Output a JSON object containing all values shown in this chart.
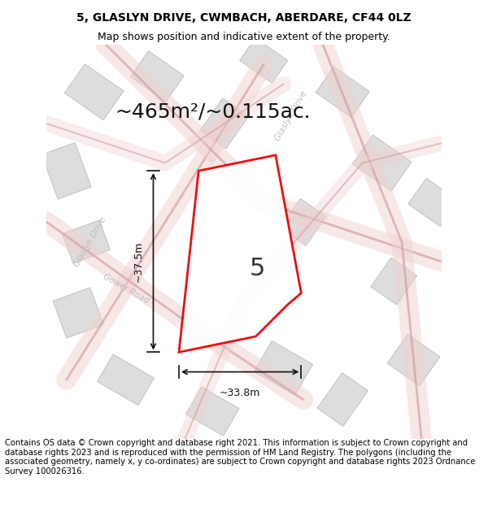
{
  "title_line1": "5, GLASLYN DRIVE, CWMBACH, ABERDARE, CF44 0LZ",
  "title_line2": "Map shows position and indicative extent of the property.",
  "area_text": "~465m²/~0.115ac.",
  "plot_number": "5",
  "dim_width": "~33.8m",
  "dim_height": "~37.5m",
  "footer_text": "Contains OS data © Crown copyright and database right 2021. This information is subject to Crown copyright and database rights 2023 and is reproduced with the permission of HM Land Registry. The polygons (including the associated geometry, namely x, y co-ordinates) are subject to Crown copyright and database rights 2023 Ordnance Survey 100026316.",
  "bg_color": "#f5f5f5",
  "map_bg": "#f8f5f5",
  "road_color": "#e8b8b8",
  "building_color": "#d8d8d8",
  "building_edge": "#cccccc",
  "plot_color": "#ff0000",
  "plot_fill": "#ffffff",
  "text_color": "#333333",
  "road_label_color": "#aaaaaa",
  "title_fontsize": 10,
  "subtitle_fontsize": 9,
  "area_fontsize": 18,
  "plot_num_fontsize": 22,
  "dim_fontsize": 9,
  "footer_fontsize": 7.2
}
